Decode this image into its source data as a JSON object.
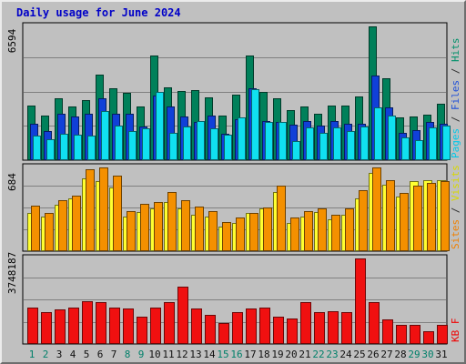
{
  "title": "Daily usage for June 2024",
  "chart_data": [
    {
      "type": "bar",
      "panel": "pages-files-hits",
      "ylim": [
        0,
        6594
      ],
      "max_label": "6594",
      "right_label": [
        {
          "text": "Pages",
          "color": "#00c8e8"
        },
        {
          "text": " / ",
          "color": "#303030"
        },
        {
          "text": "Files",
          "color": "#2050d8"
        },
        {
          "text": " / ",
          "color": "#303030"
        },
        {
          "text": "Hits",
          "color": "#00906a"
        }
      ],
      "series": [
        {
          "name": "Hits",
          "color": "#00805a",
          "values": [
            2700,
            2200,
            3050,
            2650,
            2950,
            4200,
            3550,
            3300,
            2650,
            5150,
            3600,
            3400,
            3450,
            3100,
            2200,
            3250,
            5150,
            3350,
            3050,
            2450,
            2650,
            2300,
            2700,
            2700,
            3150,
            6594,
            4050,
            2100,
            2150,
            2250,
            2800
          ]
        },
        {
          "name": "Files",
          "color": "#1040d8",
          "values": [
            1800,
            1450,
            2300,
            2150,
            2300,
            3050,
            2300,
            2300,
            1650,
            3200,
            2650,
            2150,
            1900,
            2200,
            1300,
            2000,
            3550,
            1950,
            1900,
            1750,
            1950,
            1700,
            1950,
            1800,
            1800,
            4150,
            2600,
            1350,
            1500,
            1900,
            1800
          ]
        },
        {
          "name": "Pages",
          "color": "#10e0f0",
          "values": [
            1200,
            1050,
            1300,
            1250,
            1200,
            2400,
            1700,
            1450,
            1550,
            3350,
            1350,
            1650,
            1950,
            1550,
            1250,
            2100,
            3500,
            1900,
            1900,
            950,
            1600,
            1350,
            1600,
            1450,
            1650,
            2600,
            2200,
            1100,
            1000,
            1600,
            1700
          ]
        }
      ]
    },
    {
      "type": "bar",
      "panel": "sites-visits",
      "ylim": [
        0,
        684
      ],
      "max_label": "684",
      "right_label": [
        {
          "text": "Sites",
          "color": "#f08000"
        },
        {
          "text": " / ",
          "color": "#303030"
        },
        {
          "text": "Visits",
          "color": "#d8d800"
        }
      ],
      "series": [
        {
          "name": "Visits",
          "color": "#ffff30",
          "values": [
            315,
            285,
            380,
            430,
            595,
            575,
            520,
            280,
            320,
            350,
            400,
            350,
            300,
            285,
            200,
            230,
            315,
            350,
            485,
            230,
            280,
            320,
            260,
            300,
            430,
            640,
            540,
            445,
            575,
            580,
            580
          ]
        },
        {
          "name": "Sites",
          "color": "#f49000",
          "values": [
            375,
            310,
            415,
            455,
            670,
            684,
            620,
            330,
            385,
            400,
            480,
            415,
            365,
            325,
            235,
            275,
            315,
            355,
            535,
            275,
            330,
            350,
            300,
            350,
            500,
            684,
            580,
            475,
            535,
            555,
            575
          ]
        }
      ]
    },
    {
      "type": "bar",
      "panel": "kbytes",
      "ylim": [
        0,
        3748187
      ],
      "max_label": "3748187",
      "right_label": [
        {
          "text": "KB F",
          "color": "#f00000"
        }
      ],
      "series": [
        {
          "name": "KB F",
          "color": "#f01010",
          "values": [
            1600000,
            1400000,
            1500000,
            1580000,
            1880000,
            1820000,
            1600000,
            1550000,
            1180000,
            1600000,
            1850000,
            2530000,
            1550000,
            1280000,
            920000,
            1380000,
            1550000,
            1600000,
            1200000,
            1100000,
            1830000,
            1400000,
            1450000,
            1400000,
            3748187,
            1850000,
            1080000,
            830000,
            830000,
            550000,
            830000
          ]
        }
      ]
    }
  ],
  "x_labels": [
    {
      "text": "1",
      "color": "#00806a"
    },
    {
      "text": "2",
      "color": "#00806a"
    },
    {
      "text": "3",
      "color": "#101010"
    },
    {
      "text": "4",
      "color": "#101010"
    },
    {
      "text": "5",
      "color": "#101010"
    },
    {
      "text": "6",
      "color": "#101010"
    },
    {
      "text": "7",
      "color": "#101010"
    },
    {
      "text": "8",
      "color": "#00806a"
    },
    {
      "text": "9",
      "color": "#00806a"
    },
    {
      "text": "10",
      "color": "#101010"
    },
    {
      "text": "11",
      "color": "#101010"
    },
    {
      "text": "12",
      "color": "#101010"
    },
    {
      "text": "13",
      "color": "#101010"
    },
    {
      "text": "14",
      "color": "#101010"
    },
    {
      "text": "15",
      "color": "#00806a"
    },
    {
      "text": "16",
      "color": "#00806a"
    },
    {
      "text": "17",
      "color": "#101010"
    },
    {
      "text": "18",
      "color": "#101010"
    },
    {
      "text": "19",
      "color": "#101010"
    },
    {
      "text": "20",
      "color": "#101010"
    },
    {
      "text": "21",
      "color": "#101010"
    },
    {
      "text": "22",
      "color": "#00806a"
    },
    {
      "text": "23",
      "color": "#00806a"
    },
    {
      "text": "24",
      "color": "#101010"
    },
    {
      "text": "25",
      "color": "#101010"
    },
    {
      "text": "26",
      "color": "#101010"
    },
    {
      "text": "27",
      "color": "#101010"
    },
    {
      "text": "28",
      "color": "#101010"
    },
    {
      "text": "29",
      "color": "#00806a"
    },
    {
      "text": "30",
      "color": "#00806a"
    },
    {
      "text": "31",
      "color": "#101010"
    }
  ]
}
